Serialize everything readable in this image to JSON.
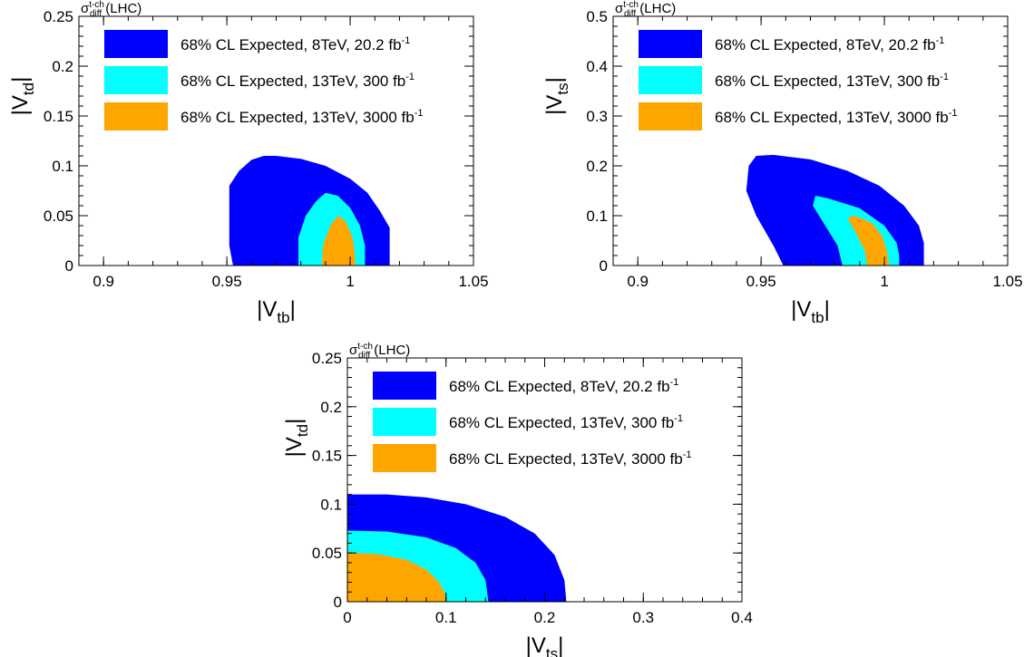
{
  "chart_data": [
    {
      "type": "area",
      "title": "",
      "header": {
        "sigma": "σ",
        "sup": "t-ch",
        "sub": "diff",
        "rest": " (LHC)"
      },
      "xlabel": {
        "main": "|V",
        "sub": "tb",
        "end": "|"
      },
      "ylabel": {
        "main": "|V",
        "sub": "td",
        "end": "|"
      },
      "xlim": [
        0.89,
        1.05
      ],
      "ylim": [
        0,
        0.25
      ],
      "xticks": [
        {
          "v": 0.9,
          "label": "0.9"
        },
        {
          "v": 0.95,
          "label": "0.95"
        },
        {
          "v": 1.0,
          "label": "1"
        },
        {
          "v": 1.05,
          "label": "1.05"
        }
      ],
      "yticks": [
        {
          "v": 0,
          "label": "0"
        },
        {
          "v": 0.05,
          "label": "0.05"
        },
        {
          "v": 0.1,
          "label": "0.1"
        },
        {
          "v": 0.15,
          "label": "0.15"
        },
        {
          "v": 0.2,
          "label": "0.2"
        },
        {
          "v": 0.25,
          "label": "0.25"
        }
      ],
      "xminor": 0.01,
      "yminor": 0.01,
      "legend_position": "top-left",
      "series": [
        {
          "name": "68% CL Expected, 8TeV, 20.2 fb",
          "sup": "-1",
          "color": "#0000ff",
          "points": [
            [
              0.9525,
              0
            ],
            [
              0.951,
              0.02
            ],
            [
              0.951,
              0.08
            ],
            [
              0.955,
              0.095
            ],
            [
              0.96,
              0.106
            ],
            [
              0.965,
              0.11
            ],
            [
              0.97,
              0.11
            ],
            [
              0.98,
              0.107
            ],
            [
              0.99,
              0.1
            ],
            [
              1.0,
              0.087
            ],
            [
              1.007,
              0.073
            ],
            [
              1.012,
              0.055
            ],
            [
              1.016,
              0.038
            ],
            [
              1.016,
              0
            ]
          ]
        },
        {
          "name": "68% CL Expected, 13TeV, 300 fb",
          "sup": "-1",
          "color": "#00ffff",
          "points": [
            [
              0.979,
              0
            ],
            [
              0.979,
              0.028
            ],
            [
              0.982,
              0.05
            ],
            [
              0.986,
              0.064
            ],
            [
              0.99,
              0.073
            ],
            [
              0.995,
              0.07
            ],
            [
              1.0,
              0.058
            ],
            [
              1.004,
              0.04
            ],
            [
              1.006,
              0.02
            ],
            [
              1.006,
              0
            ]
          ]
        },
        {
          "name": "68% CL Expected, 13TeV, 3000 fb",
          "sup": "-1",
          "color": "#ffa500",
          "points": [
            [
              0.9885,
              0
            ],
            [
              0.989,
              0.02
            ],
            [
              0.992,
              0.04
            ],
            [
              0.995,
              0.05
            ],
            [
              0.998,
              0.045
            ],
            [
              1.001,
              0.028
            ],
            [
              1.002,
              0.01
            ],
            [
              1.002,
              0
            ]
          ]
        }
      ]
    },
    {
      "type": "area",
      "title": "",
      "header": {
        "sigma": "σ",
        "sup": "t-ch",
        "sub": "diff",
        "rest": " (LHC)"
      },
      "xlabel": {
        "main": "|V",
        "sub": "tb",
        "end": "|"
      },
      "ylabel": {
        "main": "|V",
        "sub": "ts",
        "end": "|"
      },
      "xlim": [
        0.89,
        1.05
      ],
      "ylim": [
        0,
        0.5
      ],
      "xticks": [
        {
          "v": 0.9,
          "label": "0.9"
        },
        {
          "v": 0.95,
          "label": "0.95"
        },
        {
          "v": 1.0,
          "label": "1"
        },
        {
          "v": 1.05,
          "label": "1.05"
        }
      ],
      "yticks": [
        {
          "v": 0,
          "label": "0"
        },
        {
          "v": 0.1,
          "label": "0.1"
        },
        {
          "v": 0.2,
          "label": "0.2"
        },
        {
          "v": 0.3,
          "label": "0.3"
        },
        {
          "v": 0.4,
          "label": "0.4"
        },
        {
          "v": 0.5,
          "label": "0.5"
        }
      ],
      "xminor": 0.01,
      "yminor": 0.02,
      "legend_position": "top-left",
      "series": [
        {
          "name": "68% CL Expected, 8TeV, 20.2 fb",
          "sup": "-1",
          "color": "#0000ff",
          "points": [
            [
              0.959,
              0
            ],
            [
              0.955,
              0.04
            ],
            [
              0.948,
              0.1
            ],
            [
              0.944,
              0.15
            ],
            [
              0.945,
              0.2
            ],
            [
              0.948,
              0.22
            ],
            [
              0.955,
              0.222
            ],
            [
              0.97,
              0.213
            ],
            [
              0.985,
              0.19
            ],
            [
              0.998,
              0.16
            ],
            [
              1.008,
              0.12
            ],
            [
              1.014,
              0.08
            ],
            [
              1.016,
              0.045
            ],
            [
              1.016,
              0
            ]
          ]
        },
        {
          "name": "68% CL Expected, 13TeV, 300 fb",
          "sup": "-1",
          "color": "#00ffff",
          "points": [
            [
              0.983,
              0
            ],
            [
              0.981,
              0.04
            ],
            [
              0.976,
              0.08
            ],
            [
              0.971,
              0.12
            ],
            [
              0.972,
              0.14
            ],
            [
              0.977,
              0.135
            ],
            [
              0.99,
              0.115
            ],
            [
              1.0,
              0.08
            ],
            [
              1.005,
              0.045
            ],
            [
              1.006,
              0.02
            ],
            [
              1.006,
              0
            ]
          ]
        },
        {
          "name": "68% CL Expected, 13TeV, 3000 fb",
          "sup": "-1",
          "color": "#ffa500",
          "points": [
            [
              0.993,
              0
            ],
            [
              0.992,
              0.03
            ],
            [
              0.988,
              0.07
            ],
            [
              0.985,
              0.095
            ],
            [
              0.988,
              0.1
            ],
            [
              0.995,
              0.085
            ],
            [
              0.999,
              0.06
            ],
            [
              1.001,
              0.03
            ],
            [
              1.002,
              0
            ]
          ]
        }
      ]
    },
    {
      "type": "area",
      "title": "",
      "header": {
        "sigma": "σ",
        "sup": "t-ch",
        "sub": "diff",
        "rest": " (LHC)"
      },
      "xlabel": {
        "main": "|V",
        "sub": "ts",
        "end": "|"
      },
      "ylabel": {
        "main": "|V",
        "sub": "td",
        "end": "|"
      },
      "xlim": [
        0,
        0.4
      ],
      "ylim": [
        0,
        0.25
      ],
      "xticks": [
        {
          "v": 0,
          "label": "0"
        },
        {
          "v": 0.1,
          "label": "0.1"
        },
        {
          "v": 0.2,
          "label": "0.2"
        },
        {
          "v": 0.3,
          "label": "0.3"
        },
        {
          "v": 0.4,
          "label": "0.4"
        }
      ],
      "yticks": [
        {
          "v": 0,
          "label": "0"
        },
        {
          "v": 0.05,
          "label": "0.05"
        },
        {
          "v": 0.1,
          "label": "0.1"
        },
        {
          "v": 0.15,
          "label": "0.15"
        },
        {
          "v": 0.2,
          "label": "0.2"
        },
        {
          "v": 0.25,
          "label": "0.25"
        }
      ],
      "xminor": 0.02,
      "yminor": 0.01,
      "legend_position": "top-left",
      "series": [
        {
          "name": "68% CL Expected, 8TeV, 20.2 fb",
          "sup": "-1",
          "color": "#0000ff",
          "points": [
            [
              0,
              0
            ],
            [
              0,
              0.11
            ],
            [
              0.04,
              0.11
            ],
            [
              0.08,
              0.107
            ],
            [
              0.12,
              0.1
            ],
            [
              0.16,
              0.087
            ],
            [
              0.19,
              0.07
            ],
            [
              0.21,
              0.048
            ],
            [
              0.22,
              0.022
            ],
            [
              0.222,
              0
            ]
          ]
        },
        {
          "name": "68% CL Expected, 13TeV, 300 fb",
          "sup": "-1",
          "color": "#00ffff",
          "points": [
            [
              0,
              0
            ],
            [
              0,
              0.073
            ],
            [
              0.04,
              0.072
            ],
            [
              0.08,
              0.066
            ],
            [
              0.11,
              0.055
            ],
            [
              0.13,
              0.04
            ],
            [
              0.14,
              0.022
            ],
            [
              0.143,
              0
            ]
          ]
        },
        {
          "name": "68% CL Expected, 13TeV, 3000 fb",
          "sup": "-1",
          "color": "#ffa500",
          "points": [
            [
              0,
              0
            ],
            [
              0,
              0.05
            ],
            [
              0.03,
              0.049
            ],
            [
              0.06,
              0.043
            ],
            [
              0.08,
              0.033
            ],
            [
              0.093,
              0.02
            ],
            [
              0.099,
              0.008
            ],
            [
              0.1,
              0
            ]
          ]
        }
      ]
    }
  ]
}
